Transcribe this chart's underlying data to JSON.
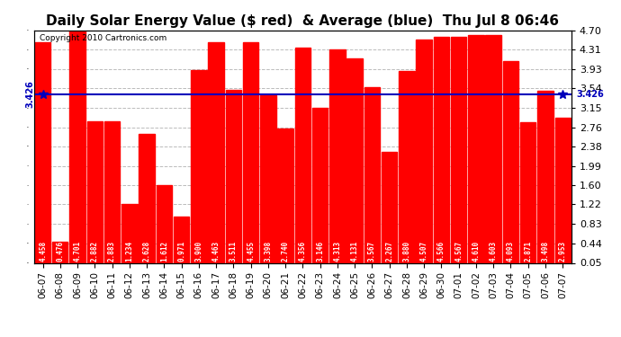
{
  "title": "Daily Solar Energy Value ($ red)  & Average (blue)  Thu Jul 8 06:46",
  "copyright": "Copyright 2010 Cartronics.com",
  "categories": [
    "06-07",
    "06-08",
    "06-09",
    "06-10",
    "06-11",
    "06-12",
    "06-13",
    "06-14",
    "06-15",
    "06-16",
    "06-17",
    "06-18",
    "06-19",
    "06-20",
    "06-21",
    "06-22",
    "06-23",
    "06-24",
    "06-25",
    "06-26",
    "06-27",
    "06-28",
    "06-29",
    "06-30",
    "07-01",
    "07-02",
    "07-03",
    "07-04",
    "07-05",
    "07-06",
    "07-07"
  ],
  "values": [
    4.458,
    0.476,
    4.701,
    2.882,
    2.883,
    1.234,
    2.628,
    1.612,
    0.971,
    3.9,
    4.463,
    3.511,
    4.455,
    3.398,
    2.74,
    4.356,
    3.146,
    4.313,
    4.131,
    3.567,
    2.267,
    3.88,
    4.507,
    4.566,
    4.567,
    4.61,
    4.603,
    4.093,
    2.871,
    3.498,
    2.953
  ],
  "average": 3.426,
  "bar_color": "#ff0000",
  "avg_line_color": "#0000bb",
  "background_color": "#ffffff",
  "grid_color": "#bbbbbb",
  "ylim": [
    0.05,
    4.7
  ],
  "yticks": [
    0.05,
    0.44,
    0.83,
    1.22,
    1.6,
    1.99,
    2.38,
    2.76,
    3.15,
    3.54,
    3.93,
    4.31,
    4.7
  ],
  "title_fontsize": 11,
  "copyright_fontsize": 6.5,
  "bar_label_fontsize": 5.5,
  "tick_fontsize": 8,
  "avg_label": "3.426",
  "avg_label_fontsize": 7
}
